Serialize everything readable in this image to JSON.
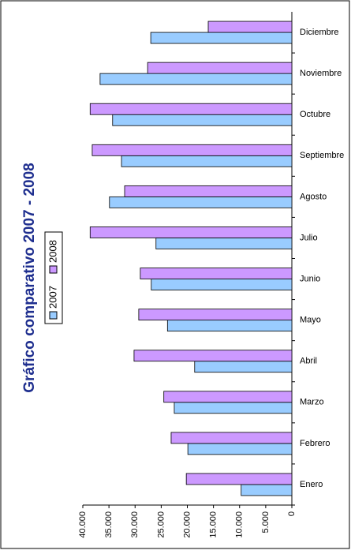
{
  "chart_data": {
    "type": "bar",
    "title": "Gráfico comparativo 2007 - 2008",
    "categories": [
      "Enero",
      "Febrero",
      "Marzo",
      "Abril",
      "Mayo",
      "Junio",
      "Julio",
      "Agosto",
      "Septiembre",
      "Octubre",
      "Noviembre",
      "Diciembre"
    ],
    "series": [
      {
        "name": "2007",
        "color": "#99ccff",
        "values": [
          9700,
          19900,
          22500,
          18600,
          23800,
          26900,
          26000,
          34900,
          32600,
          34300,
          36700,
          27000
        ]
      },
      {
        "name": "2008",
        "color": "#cc99ff",
        "values": [
          20200,
          23100,
          24500,
          30200,
          29300,
          29000,
          38600,
          32000,
          38200,
          38600,
          27600,
          16000
        ]
      }
    ],
    "ylim": [
      0,
      40000
    ],
    "yticks": [
      0,
      {
        "value": 5000,
        "label": "5.000"
      },
      {
        "value": 10000,
        "label": "10.000"
      },
      {
        "value": 15000,
        "label": "15.000"
      },
      {
        "value": 20000,
        "label": "20.000"
      },
      {
        "value": 25000,
        "label": "25.000"
      },
      {
        "value": 30000,
        "label": "30.000"
      },
      {
        "value": 35000,
        "label": "35.000"
      },
      {
        "value": 40000,
        "label": "40.000"
      }
    ]
  }
}
